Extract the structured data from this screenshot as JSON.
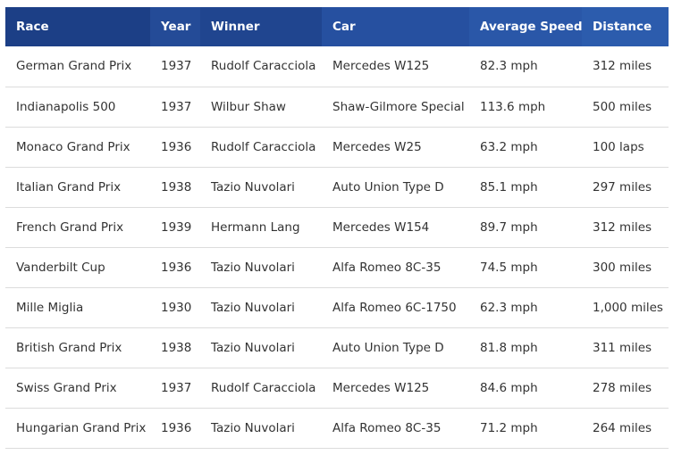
{
  "table": {
    "headers": {
      "race": "Race",
      "year": "Year",
      "winner": "Winner",
      "car": "Car",
      "speed": "Average Speed",
      "distance": "Distance"
    },
    "rows": [
      {
        "race": "German Grand Prix",
        "year": "1937",
        "winner": "Rudolf Caracciola",
        "car": "Mercedes W125",
        "speed": "82.3 mph",
        "distance": "312 miles"
      },
      {
        "race": "Indianapolis 500",
        "year": "1937",
        "winner": "Wilbur Shaw",
        "car": "Shaw-Gilmore Special",
        "speed": "113.6 mph",
        "distance": "500 miles"
      },
      {
        "race": "Monaco Grand Prix",
        "year": "1936",
        "winner": "Rudolf Caracciola",
        "car": "Mercedes W25",
        "speed": "63.2 mph",
        "distance": "100 laps"
      },
      {
        "race": "Italian Grand Prix",
        "year": "1938",
        "winner": "Tazio Nuvolari",
        "car": "Auto Union Type D",
        "speed": "85.1 mph",
        "distance": "297 miles"
      },
      {
        "race": "French Grand Prix",
        "year": "1939",
        "winner": "Hermann Lang",
        "car": "Mercedes W154",
        "speed": "89.7 mph",
        "distance": "312 miles"
      },
      {
        "race": "Vanderbilt Cup",
        "year": "1936",
        "winner": "Tazio Nuvolari",
        "car": "Alfa Romeo 8C-35",
        "speed": "74.5 mph",
        "distance": "300 miles"
      },
      {
        "race": "Mille Miglia",
        "year": "1930",
        "winner": "Tazio Nuvolari",
        "car": "Alfa Romeo 6C-1750",
        "speed": "62.3 mph",
        "distance": "1,000 miles"
      },
      {
        "race": "British Grand Prix",
        "year": "1938",
        "winner": "Tazio Nuvolari",
        "car": "Auto Union Type D",
        "speed": "81.8 mph",
        "distance": "311 miles"
      },
      {
        "race": "Swiss Grand Prix",
        "year": "1937",
        "winner": "Rudolf Caracciola",
        "car": "Mercedes W125",
        "speed": "84.6 mph",
        "distance": "278 miles"
      },
      {
        "race": "Hungarian Grand Prix",
        "year": "1936",
        "winner": "Tazio Nuvolari",
        "car": "Alfa Romeo 8C-35",
        "speed": "71.2 mph",
        "distance": "264 miles"
      }
    ]
  },
  "colors": {
    "header_bg": "#1c3f86",
    "header_text": "#ffffff",
    "cell_text": "#333333",
    "row_divider": "#dcdcdc"
  }
}
